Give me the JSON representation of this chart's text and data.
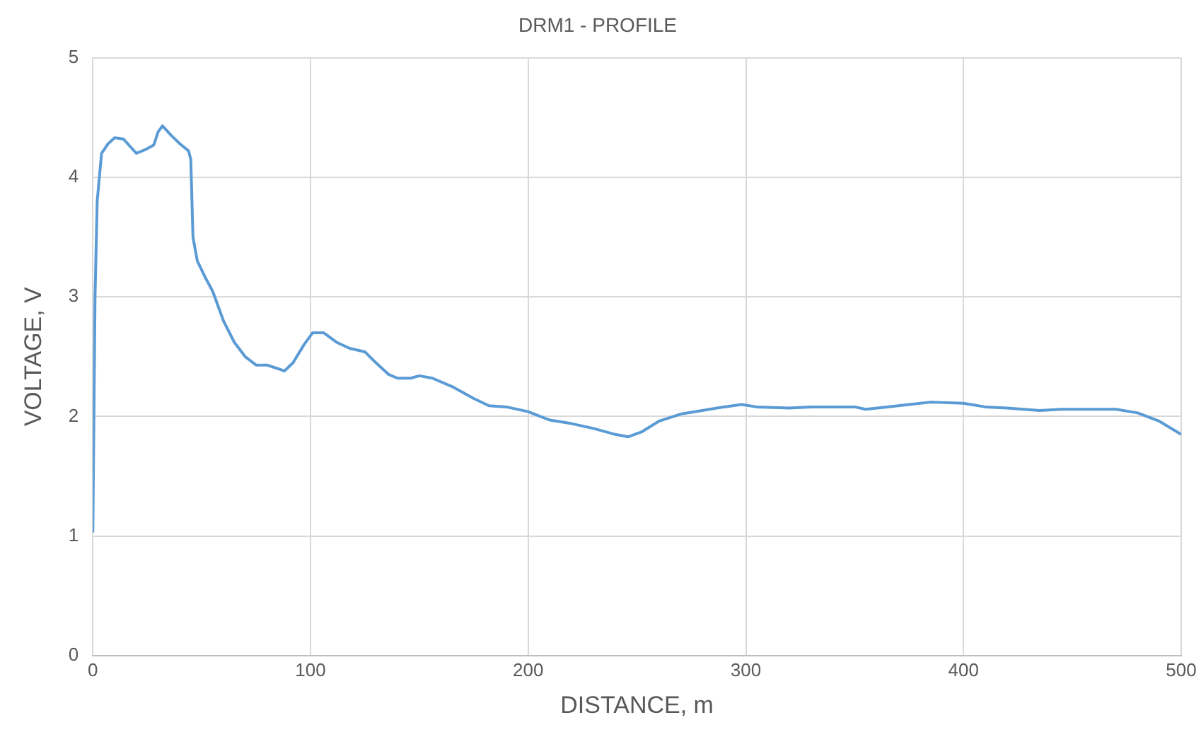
{
  "chart_data": {
    "type": "line",
    "title": "DRM1 - PROFILE",
    "xlabel": "DISTANCE, m",
    "ylabel": "VOLTAGE, V",
    "xlim": [
      0,
      500
    ],
    "xticks": [
      0,
      100,
      200,
      300,
      400,
      500
    ],
    "ylim": [
      0,
      5
    ],
    "yticks": [
      0,
      1,
      2,
      3,
      4,
      5
    ],
    "grid": true,
    "legend": false,
    "marker": "none",
    "line_style": "solid",
    "series": [
      {
        "color": "#5b9bd5",
        "x": [
          0,
          1,
          2,
          3,
          4,
          7,
          10,
          14,
          20,
          24,
          28,
          30,
          32,
          36,
          40,
          44,
          45,
          46,
          48,
          52,
          55,
          60,
          65,
          70,
          75,
          80,
          85,
          88,
          92,
          97,
          101,
          106,
          112,
          118,
          125,
          130,
          136,
          140,
          146,
          150,
          156,
          165,
          175,
          182,
          190,
          200,
          210,
          220,
          230,
          240,
          246,
          252,
          260,
          270,
          280,
          290,
          298,
          305,
          320,
          330,
          350,
          355,
          365,
          375,
          385,
          400,
          410,
          420,
          435,
          445,
          470,
          480,
          490,
          500
        ],
        "values": [
          1.03,
          3.0,
          3.8,
          4.0,
          4.2,
          4.28,
          4.33,
          4.32,
          4.2,
          4.23,
          4.27,
          4.38,
          4.43,
          4.35,
          4.28,
          4.22,
          4.15,
          3.5,
          3.3,
          3.15,
          3.05,
          2.8,
          2.62,
          2.5,
          2.43,
          2.43,
          2.4,
          2.38,
          2.45,
          2.6,
          2.7,
          2.7,
          2.62,
          2.57,
          2.54,
          2.45,
          2.35,
          2.32,
          2.32,
          2.34,
          2.32,
          2.25,
          2.15,
          2.09,
          2.08,
          2.04,
          1.97,
          1.94,
          1.9,
          1.85,
          1.83,
          1.87,
          1.96,
          2.02,
          2.05,
          2.08,
          2.1,
          2.08,
          2.07,
          2.08,
          2.08,
          2.06,
          2.08,
          2.1,
          2.12,
          2.11,
          2.08,
          2.07,
          2.05,
          2.06,
          2.06,
          2.03,
          1.96,
          1.85
        ]
      }
    ]
  }
}
